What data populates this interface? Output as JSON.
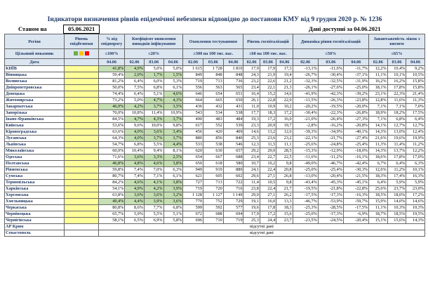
{
  "title": "Індикатори визначення рівнів епідемічної небезпеки відповідно до постанови КМУ від 9 грудня 2020 р. № 1236",
  "status_label": "Станом на",
  "status_date": "05.06.2021",
  "available_label": "Дані доступні за 04.06.2021",
  "headers": {
    "region": "Регіон",
    "level": "Рівень епідбезпеки",
    "beds": "% від епідпорогу",
    "coef": "Коефіцієнт виявлення випадків інфікування",
    "tests": "Охоплення тестуванням",
    "hosp": "Рівень госпіталізацій",
    "dyn": "Динаміка рівня госпіталізацій",
    "load": "Завантаженість ліжок з киснем"
  },
  "thresholds": {
    "label": "Цільовий показник",
    "beds": "≤100%",
    "coef": "≤20%",
    "tests": "≥300 на 100 тис. нас.",
    "hosp": "≤60 на 100 тис. нас.",
    "dyn": "≤50%",
    "load": "≤65%"
  },
  "date_label": "Дата",
  "date_cols": [
    "04.06",
    "02.06",
    "03.06",
    "04.06",
    "02.06",
    "03.06",
    "04.06",
    "02.06",
    "03.06",
    "04.06",
    "02.06",
    "03.06",
    "04.06",
    "02.06",
    "03.06",
    "04.06"
  ],
  "indicator_colors": [
    "#70ad47",
    "#ffc000",
    "#ff0000"
  ],
  "no_data": "відсутні дані",
  "rows": [
    {
      "region": "КИЇВ",
      "v": [
        "41,8%",
        "4,9%",
        "5,0%",
        "5,0%",
        "1 615",
        "1 728",
        "1 810",
        "17,9",
        "17,9",
        "17,3",
        "-13,1%",
        "-11,6%",
        "-11,7%",
        "12,2%",
        "10,4%",
        "9,2%"
      ]
    },
    {
      "region": "Вінницька",
      "v": [
        "59,4%",
        "2,0%",
        "1,7%",
        "1,5%",
        "849",
        "848",
        "848",
        "24,3",
        "21,9",
        "19,4",
        "-26,7%",
        "-30,4%",
        "-37,1%",
        "11,1%",
        "10,1%",
        "10,5%"
      ]
    },
    {
      "region": "Волинська",
      "v": [
        "81,2%",
        "6,4%",
        "6,0%",
        "5,3%",
        "719",
        "713",
        "736",
        "23,2",
        "22,6",
        "21,2",
        "-32,3%",
        "-32,5%",
        "-31,9%",
        "16,2%",
        "16,2%",
        "15,8%"
      ]
    },
    {
      "region": "Дніпропетровська",
      "v": [
        "50,0%",
        "7,5%",
        "6,8%",
        "6,1%",
        "556",
        "563",
        "565",
        "23,4",
        "22,1",
        "21,3",
        "-26,1%",
        "-27,6%",
        "-25,0%",
        "18,1%",
        "17,8%",
        "15,8%"
      ]
    },
    {
      "region": "Донецька",
      "v": [
        "74,4%",
        "6,4%",
        "5,1%",
        "4,6%",
        "646",
        "654",
        "651",
        "16,4",
        "15,2",
        "14,6",
        "-41,9%",
        "-42,3%",
        "-39,2%",
        "23,1%",
        "22,3%",
        "21,4%"
      ]
    },
    {
      "region": "Житомирська",
      "v": [
        "73,2%",
        "5,0%",
        "4,7%",
        "4,3%",
        "664",
        "665",
        "650",
        "26,1",
        "22,8",
        "22,9",
        "-11,5%",
        "-26,3%",
        "-23,8%",
        "12,8%",
        "11,6%",
        "11,3%"
      ]
    },
    {
      "region": "Закарпатська",
      "v": [
        "46,9%",
        "4,2%",
        "3,7%",
        "3,5%",
        "436",
        "432",
        "431",
        "11,0",
        "10,9",
        "10,2",
        "-20,2%",
        "-19,5%",
        "-20,0%",
        "7,1%",
        "7,1%",
        "7,0%"
      ]
    },
    {
      "region": "Запорізька",
      "v": [
        "70,0%",
        "10,8%",
        "11,4%",
        "10,9%",
        "543",
        "534",
        "538",
        "17,7",
        "18,3",
        "17,2",
        "-30,4%",
        "-22,3%",
        "-26,8%",
        "18,9%",
        "18,2%",
        "17,5%"
      ]
    },
    {
      "region": "Івано-Франківська",
      "v": [
        "84,5%",
        "4,7%",
        "4,3%",
        "3,7%",
        "490",
        "483",
        "484",
        "19,3",
        "17,2",
        "16,0",
        "-21,0%",
        "-26,4%",
        "-27,3%",
        "7,1%",
        "6,8%",
        "6,4%"
      ]
    },
    {
      "region": "Київська",
      "v": [
        "53,6%",
        "9,6%",
        "10,0%",
        "9,8%",
        "617",
        "552",
        "539",
        "23,3",
        "20,9",
        "19,7",
        "-2,8%",
        "-16,2%",
        "-20,8%",
        "14,1%",
        "12,7%",
        "12,7%"
      ]
    },
    {
      "region": "Кіровоградська",
      "v": [
        "63,6%",
        "4,0%",
        "3,6%",
        "3,4%",
        "456",
        "420",
        "409",
        "14,6",
        "13,2",
        "12,6",
        "-39,3%",
        "-34,9%",
        "-40,1%",
        "14,3%",
        "13,0%",
        "12,4%"
      ]
    },
    {
      "region": "Луганська",
      "v": [
        "64,3%",
        "4,0%",
        "3,7%",
        "3,7%",
        "880",
        "856",
        "840",
        "25,3",
        "23,6",
        "23,2",
        "-22,1%",
        "-21,7%",
        "-27,4%",
        "21,6%",
        "19,6%",
        "19,9%"
      ]
    },
    {
      "region": "Львівська",
      "v": [
        "54,7%",
        "6,8%",
        "5,5%",
        "4,4%",
        "533",
        "538",
        "546",
        "12,3",
        "11,5",
        "11,1",
        "-25,6%",
        "-24,8%",
        "-25,4%",
        "11,3%",
        "11,4%",
        "11,2%"
      ]
    },
    {
      "region": "Миколаївська",
      "v": [
        "60,0%",
        "10,4%",
        "9,4%",
        "8,1%",
        "620",
        "630",
        "657",
        "29,2",
        "29,0",
        "28,5",
        "-15,3%",
        "-12,9%",
        "-18,0%",
        "14,3%",
        "13,7%",
        "12,2%"
      ]
    },
    {
      "region": "Одеська",
      "v": [
        "71,6%",
        "3,6%",
        "3,3%",
        "2,5%",
        "654",
        "667",
        "688",
        "23,4",
        "22,7",
        "22,5",
        "-11,6%",
        "-11,2%",
        "-16,1%",
        "18,6%",
        "17,8%",
        "17,0%"
      ]
    },
    {
      "region": "Полтавська",
      "v": [
        "46,8%",
        "4,8%",
        "4,6%",
        "3,8%",
        "650",
        "618",
        "580",
        "10,7",
        "10,2",
        "9,8",
        "-49,0%",
        "-46,7%",
        "-42,4%",
        "6,7%",
        "6,4%",
        "6,3%"
      ]
    },
    {
      "region": "Рівненська",
      "v": [
        "59,8%",
        "7,4%",
        "7,0%",
        "6,3%",
        "949",
        "919",
        "880",
        "24,1",
        "22,4",
        "20,8",
        "-25,0%",
        "-25,4%",
        "-30,3%",
        "12,6%",
        "11,2%",
        "10,1%"
      ]
    },
    {
      "region": "Сумська",
      "v": [
        "80,7%",
        "7,4%",
        "7,1%",
        "6,1%",
        "621",
        "605",
        "602",
        "29,6",
        "27,1",
        "26,8",
        "-13,0%",
        "-20,4%",
        "-21,5%",
        "18,3%",
        "17,4%",
        "16,3%"
      ]
    },
    {
      "region": "Тернопільська",
      "v": [
        "84,2%",
        "4,6%",
        "4,1%",
        "3,8%",
        "727",
        "713",
        "722",
        "11,4",
        "10,5",
        "9,8",
        "-43,4%",
        "-45,3%",
        "-45,1%",
        "6,4%",
        "5,9%",
        "5,9%"
      ]
    },
    {
      "region": "Харківська",
      "v": [
        "54,1%",
        "4,9%",
        "4,2%",
        "3,9%",
        "719",
        "720",
        "716",
        "23,8",
        "22,4",
        "21,7",
        "-19,5%",
        "-21,8%",
        "-22,8%",
        "25,6%",
        "23,7%",
        "23,0%"
      ]
    },
    {
      "region": "Херсонська",
      "v": [
        "63,8%",
        "3,6%",
        "3,6%",
        "3,2%",
        "1 128",
        "1 127",
        "1 149",
        "29,0",
        "27,1",
        "26,2",
        "-17,5%",
        "-17,3%",
        "-16,3%",
        "18,5%",
        "18,0%",
        "17,2%"
      ]
    },
    {
      "region": "Хмельницька",
      "v": [
        "49,4%",
        "4,4%",
        "3,9%",
        "3,6%",
        "770",
        "752",
        "729",
        "19,1",
        "16,0",
        "13,3",
        "-46,7%",
        "-53,9%",
        "-59,7%",
        "15,9%",
        "14,0%",
        "14,6%"
      ]
    },
    {
      "region": "Черкаська",
      "v": [
        "80,8%",
        "8,6%",
        "7,7%",
        "6,8%",
        "599",
        "592",
        "577",
        "19,6",
        "17,8",
        "18,3",
        "-25,3%",
        "-28,5%",
        "-17,5%",
        "11,1%",
        "10,3%",
        "10,3%"
      ]
    },
    {
      "region": "Чернівецька",
      "v": [
        "65,7%",
        "5,9%",
        "5,5%",
        "5,1%",
        "672",
        "688",
        "694",
        "17,9",
        "17,2",
        "15,6",
        "-25,0%",
        "-17,3%",
        "-6,9%",
        "18,7%",
        "18,5%",
        "19,5%"
      ]
    },
    {
      "region": "Чернігівська",
      "v": [
        "58,1%",
        "6,5%",
        "6,9%",
        "5,8%",
        "696",
        "710",
        "719",
        "25,3",
        "24,4",
        "23,7",
        "-23,5%",
        "-24,5%",
        "-20,4%",
        "15,1%",
        "15,6%",
        "14,3%"
      ]
    },
    {
      "region": "АР Крим",
      "na": true
    },
    {
      "region": "Севастополь",
      "na": true
    }
  ]
}
